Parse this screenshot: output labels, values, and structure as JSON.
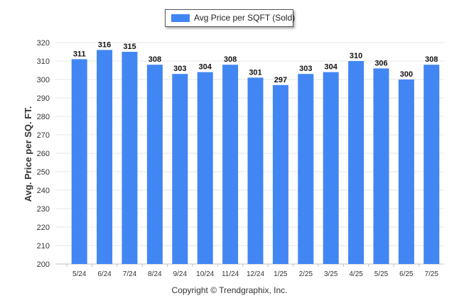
{
  "colors": {
    "bar": "#4286f4",
    "grid": "#e6e6e6",
    "axis": "#c0c0c0",
    "text": "#333333"
  },
  "legend": {
    "label": "Avg Price per SQFT (Sold)"
  },
  "footer": {
    "copyright": "Copyright © Trendgraphix, Inc."
  },
  "chart_data": {
    "type": "bar",
    "title": "",
    "xlabel": "",
    "ylabel": "Avg. Price per SQ. FT.",
    "ylim": [
      200,
      320
    ],
    "yticks": [
      200,
      210,
      220,
      230,
      240,
      250,
      260,
      270,
      280,
      290,
      300,
      310,
      320
    ],
    "grid": true,
    "legend_position": "top-center",
    "categories": [
      "5/24",
      "6/24",
      "7/24",
      "8/24",
      "9/24",
      "10/24",
      "11/24",
      "12/24",
      "1/25",
      "2/25",
      "3/25",
      "4/25",
      "5/25",
      "6/25",
      "7/25"
    ],
    "series": [
      {
        "name": "Avg Price per SQFT (Sold)",
        "values": [
          311,
          316,
          315,
          308,
          303,
          304,
          308,
          301,
          297,
          303,
          304,
          310,
          306,
          300,
          308
        ]
      }
    ]
  }
}
